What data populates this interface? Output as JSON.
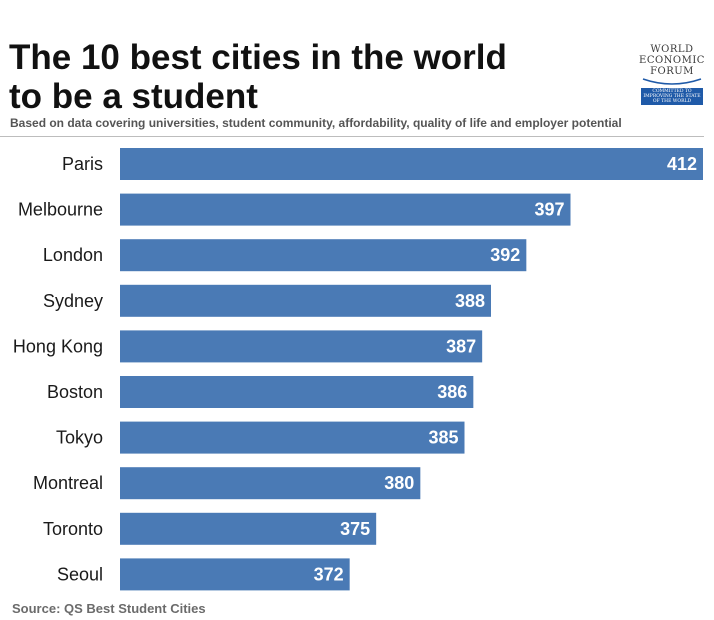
{
  "header": {
    "title_line1": "The 10 best cities in the world",
    "title_line2": "to be a student",
    "subtitle": "Based on data covering universities, student community, affordability, quality of life and employer potential"
  },
  "logo": {
    "line1": "WORLD",
    "line2": "ECONOMIC",
    "line3": "FORUM",
    "tag_line1": "COMMITTED TO",
    "tag_line2": "IMPROVING THE STATE",
    "tag_line3": "OF THE WORLD"
  },
  "footer": {
    "source": "Source:  QS Best Student Cities"
  },
  "colors": {
    "bar": "#4a7ab5",
    "bar_label": "#ffffff",
    "category_label": "#1a1a1a"
  },
  "chart_data": {
    "type": "bar",
    "orientation": "horizontal",
    "title": "The 10 best cities in the world to be a student",
    "subtitle": "Based on data covering universities, student community, affordability, quality of life and employer potential",
    "categories": [
      "Paris",
      "Melbourne",
      "London",
      "Sydney",
      "Hong Kong",
      "Boston",
      "Tokyo",
      "Montreal",
      "Toronto",
      "Seoul"
    ],
    "values": [
      412,
      397,
      392,
      388,
      387,
      386,
      385,
      380,
      375,
      372
    ],
    "value_labels": [
      "412",
      "397",
      "392",
      "388",
      "387",
      "386",
      "385",
      "380",
      "375",
      "372"
    ],
    "xlim": [
      346,
      412
    ],
    "grid": false,
    "legend": "none",
    "data_labels": "inside-end"
  }
}
